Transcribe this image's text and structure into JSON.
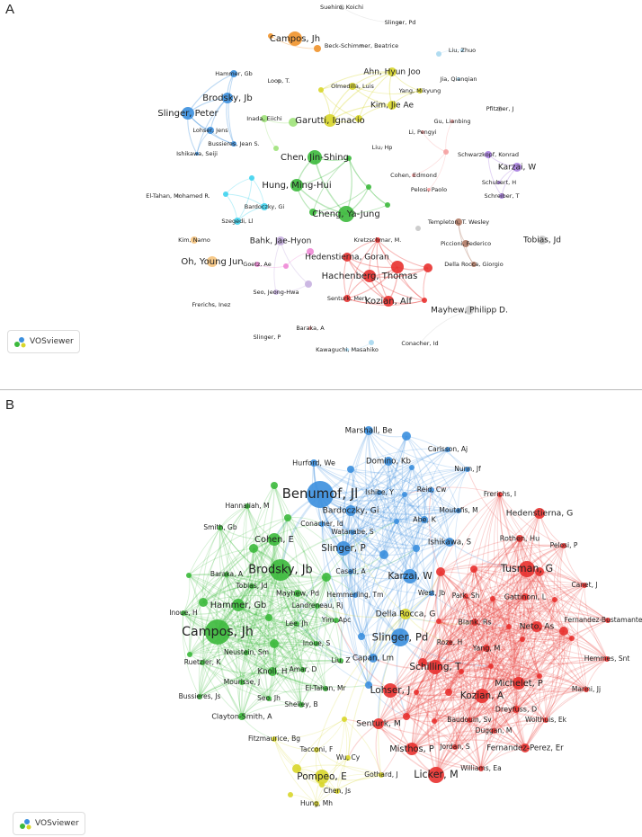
{
  "colors": {
    "red": "#e8312f",
    "green": "#3cb93c",
    "blue": "#3b8fde",
    "yellow": "#d8d62a",
    "orange": "#f0922a",
    "lightgreen": "#9ee27a",
    "cyan": "#3fd3ee",
    "purple": "#a97ee0",
    "pink": "#ee88d6",
    "brown": "#b07a65",
    "gray": "#c8c8c8",
    "lightblue": "#a8d8f0",
    "lavender": "#c7b0e0",
    "lightorange": "#f5c37d",
    "salmon": "#f5a0a0"
  },
  "logo_text": "VOSviewer",
  "panels": [
    {
      "letter": "A",
      "nodes": [
        {
          "label": "Suehiro, Koichi",
          "cluster": "gray"
        },
        {
          "label": "Slinger, Pd",
          "cluster": "gray"
        },
        {
          "label": "Campos, Jh",
          "cluster": "orange"
        },
        {
          "label": "Beck-Schimmer, Beatrice",
          "cluster": "gray"
        },
        {
          "label": "Liu, Zhuo",
          "cluster": "lightblue"
        },
        {
          "label": "Hammer, Gb",
          "cluster": "blue"
        },
        {
          "label": "Loop, T.",
          "cluster": "gray"
        },
        {
          "label": "Ahn, Hyun Joo",
          "cluster": "yellow"
        },
        {
          "label": "Jia, Qianqian",
          "cluster": "lightblue"
        },
        {
          "label": "Olmedilla, Luis",
          "cluster": "yellow"
        },
        {
          "label": "Yang, Mikyung",
          "cluster": "yellow"
        },
        {
          "label": "Brodsky, Jb",
          "cluster": "blue"
        },
        {
          "label": "Kim, Jie Ae",
          "cluster": "yellow"
        },
        {
          "label": "Pfitzner, J",
          "cluster": "gray"
        },
        {
          "label": "Slinger, Peter",
          "cluster": "blue"
        },
        {
          "label": "Inada, Eiichi",
          "cluster": "lightgreen"
        },
        {
          "label": "Garutti, Ignacio",
          "cluster": "yellow"
        },
        {
          "label": "Gu, Lianbing",
          "cluster": "salmon"
        },
        {
          "label": "Lohser, Jens",
          "cluster": "blue"
        },
        {
          "label": "Li, Pengyi",
          "cluster": "salmon"
        },
        {
          "label": "Bussieres, Jean S.",
          "cluster": "blue"
        },
        {
          "label": "Liu, Hp",
          "cluster": "gray"
        },
        {
          "label": "Ishikawa, Seiji",
          "cluster": "blue"
        },
        {
          "label": "Schwarzkopf, Konrad",
          "cluster": "purple"
        },
        {
          "label": "Karzai, W",
          "cluster": "purple"
        },
        {
          "label": "Chen, Jin-Shing",
          "cluster": "green"
        },
        {
          "label": "Cohen, Edmond",
          "cluster": "salmon"
        },
        {
          "label": "Schubert, H",
          "cluster": "purple"
        },
        {
          "label": "Hung, Ming-Hui",
          "cluster": "green"
        },
        {
          "label": "Pelosi, Paolo",
          "cluster": "salmon"
        },
        {
          "label": "El-Tahan, Mohamed R.",
          "cluster": "gray"
        },
        {
          "label": "Schreiber, T",
          "cluster": "purple"
        },
        {
          "label": "Bardoczky, Gi",
          "cluster": "cyan"
        },
        {
          "label": "Cheng, Ya-Jung",
          "cluster": "green"
        },
        {
          "label": "Szegedi, Ll",
          "cluster": "cyan"
        },
        {
          "label": "Templeton, T. Wesley",
          "cluster": "brown"
        },
        {
          "label": "Kim, Namo",
          "cluster": "lightorange"
        },
        {
          "label": "Bahk, Jae-Hyon",
          "cluster": "lavender"
        },
        {
          "label": "Kretzschmar, M.",
          "cluster": "red"
        },
        {
          "label": "Piccioni, Federico",
          "cluster": "brown"
        },
        {
          "label": "Tobias, Jd",
          "cluster": "gray"
        },
        {
          "label": "Oh, Young Jun",
          "cluster": "lightorange"
        },
        {
          "label": "Goetz, Ae",
          "cluster": "pink"
        },
        {
          "label": "Hedenstierna, Goran",
          "cluster": "red"
        },
        {
          "label": "Della Rocca, Giorgio",
          "cluster": "brown"
        },
        {
          "label": "Hachenberg, Thomas",
          "cluster": "red"
        },
        {
          "label": "Seo, Jeong-Hwa",
          "cluster": "lavender"
        },
        {
          "label": "Senturk, Mert",
          "cluster": "red"
        },
        {
          "label": "Kozian, Alf",
          "cluster": "red"
        },
        {
          "label": "Mayhew, Philipp D.",
          "cluster": "gray"
        },
        {
          "label": "Frerichs, Inez",
          "cluster": "gray"
        },
        {
          "label": "Baraka, A",
          "cluster": "salmon"
        },
        {
          "label": "Slinger, P",
          "cluster": "gray"
        },
        {
          "label": "Kawaguchi, Masahiko",
          "cluster": "lightblue"
        },
        {
          "label": "Conacher, Id",
          "cluster": "gray"
        }
      ]
    },
    {
      "letter": "B",
      "nodes": [
        {
          "label": "Marshall, Be",
          "cluster": "blue"
        },
        {
          "label": "Carlsson, Aj",
          "cluster": "blue"
        },
        {
          "label": "Hurford, We",
          "cluster": "blue"
        },
        {
          "label": "Domino, Kb",
          "cluster": "blue"
        },
        {
          "label": "Nunn, Jf",
          "cluster": "blue"
        },
        {
          "label": "Benumof, Jl",
          "cluster": "blue"
        },
        {
          "label": "Ishibe, Y",
          "cluster": "blue"
        },
        {
          "label": "Reid, Cw",
          "cluster": "blue"
        },
        {
          "label": "Frerichs, I",
          "cluster": "red"
        },
        {
          "label": "Hannallah, M",
          "cluster": "green"
        },
        {
          "label": "Moutafis, M",
          "cluster": "blue"
        },
        {
          "label": "Bardoczky, Gi",
          "cluster": "blue"
        },
        {
          "label": "Hedenstierna, G",
          "cluster": "red"
        },
        {
          "label": "Smith, Gb",
          "cluster": "green"
        },
        {
          "label": "Abe, K",
          "cluster": "blue"
        },
        {
          "label": "Conacher, Id",
          "cluster": "blue"
        },
        {
          "label": "Cohen, E",
          "cluster": "green"
        },
        {
          "label": "Watanabe, S",
          "cluster": "blue"
        },
        {
          "label": "Rothen, Hu",
          "cluster": "red"
        },
        {
          "label": "Pelosi, P",
          "cluster": "red"
        },
        {
          "label": "Ishikawa, S",
          "cluster": "blue"
        },
        {
          "label": "Slinger, P",
          "cluster": "blue"
        },
        {
          "label": "Baraka, A",
          "cluster": "green"
        },
        {
          "label": "Brodsky, Jb",
          "cluster": "green"
        },
        {
          "label": "Casati, A",
          "cluster": "blue"
        },
        {
          "label": "Karzai, W",
          "cluster": "blue"
        },
        {
          "label": "Tusman, G",
          "cluster": "red"
        },
        {
          "label": "Canet, J",
          "cluster": "red"
        },
        {
          "label": "Tobias, Jd",
          "cluster": "green"
        },
        {
          "label": "Inoue, H",
          "cluster": "green"
        },
        {
          "label": "Mayhew, Pd",
          "cluster": "green"
        },
        {
          "label": "Hemmerling, Tm",
          "cluster": "blue"
        },
        {
          "label": "West, Jb",
          "cluster": "blue"
        },
        {
          "label": "Park, Sh",
          "cluster": "red"
        },
        {
          "label": "Gattinoni, L",
          "cluster": "red"
        },
        {
          "label": "Hammer, Gb",
          "cluster": "green"
        },
        {
          "label": "Landreneau, Rj",
          "cluster": "green"
        },
        {
          "label": "Campos, Jh",
          "cluster": "green"
        },
        {
          "label": "Yim, Apc",
          "cluster": "green"
        },
        {
          "label": "Lee, Jh",
          "cluster": "green"
        },
        {
          "label": "Della Rocca, G",
          "cluster": "yellow"
        },
        {
          "label": "Fernandez-Bustamante, A",
          "cluster": "red"
        },
        {
          "label": "Blank, Rs",
          "cluster": "red"
        },
        {
          "label": "Neto, As",
          "cluster": "red"
        },
        {
          "label": "Inoue, S",
          "cluster": "green"
        },
        {
          "label": "Slinger, Pd",
          "cluster": "blue"
        },
        {
          "label": "Roze, H",
          "cluster": "red"
        },
        {
          "label": "Yang, M",
          "cluster": "red"
        },
        {
          "label": "Hemmes, Snt",
          "cluster": "red"
        },
        {
          "label": "Neustein, Sm",
          "cluster": "green"
        },
        {
          "label": "Liu, Z",
          "cluster": "green"
        },
        {
          "label": "Capan, Lm",
          "cluster": "blue"
        },
        {
          "label": "Schilling, T",
          "cluster": "red"
        },
        {
          "label": "Ruetzler, K",
          "cluster": "green"
        },
        {
          "label": "Knoll, H",
          "cluster": "green"
        },
        {
          "label": "Amar, D",
          "cluster": "green"
        },
        {
          "label": "Michelet, P",
          "cluster": "red"
        },
        {
          "label": "Lohser, J",
          "cluster": "red"
        },
        {
          "label": "Mourisse, J",
          "cluster": "green"
        },
        {
          "label": "Kozian, A",
          "cluster": "red"
        },
        {
          "label": "Marini, Jj",
          "cluster": "red"
        },
        {
          "label": "El-Tahan, Mr",
          "cluster": "green"
        },
        {
          "label": "Dreyfuss, D",
          "cluster": "red"
        },
        {
          "label": "Bussieres, Js",
          "cluster": "green"
        },
        {
          "label": "Seo, Jh",
          "cluster": "green"
        },
        {
          "label": "Shelley, B",
          "cluster": "green"
        },
        {
          "label": "Baudouin, Sv",
          "cluster": "red"
        },
        {
          "label": "Wolthuis, Ek",
          "cluster": "red"
        },
        {
          "label": "Senturk, M",
          "cluster": "red"
        },
        {
          "label": "Duggan, M",
          "cluster": "red"
        },
        {
          "label": "Clayton-Smith, A",
          "cluster": "green"
        },
        {
          "label": "Fitzmaurice, Bg",
          "cluster": "yellow"
        },
        {
          "label": "Jordan, S",
          "cluster": "red"
        },
        {
          "label": "Fernandez-Perez, Er",
          "cluster": "red"
        },
        {
          "label": "Tacconi, F",
          "cluster": "yellow"
        },
        {
          "label": "Misthos, P",
          "cluster": "red"
        },
        {
          "label": "Wu, Cy",
          "cluster": "yellow"
        },
        {
          "label": "Williams, Ea",
          "cluster": "red"
        },
        {
          "label": "Pompeo, E",
          "cluster": "yellow"
        },
        {
          "label": "Gothard, J",
          "cluster": "yellow"
        },
        {
          "label": "Licker, M",
          "cluster": "red"
        },
        {
          "label": "Chen, Js",
          "cluster": "yellow"
        },
        {
          "label": "Hung, Mh",
          "cluster": "yellow"
        }
      ]
    }
  ]
}
